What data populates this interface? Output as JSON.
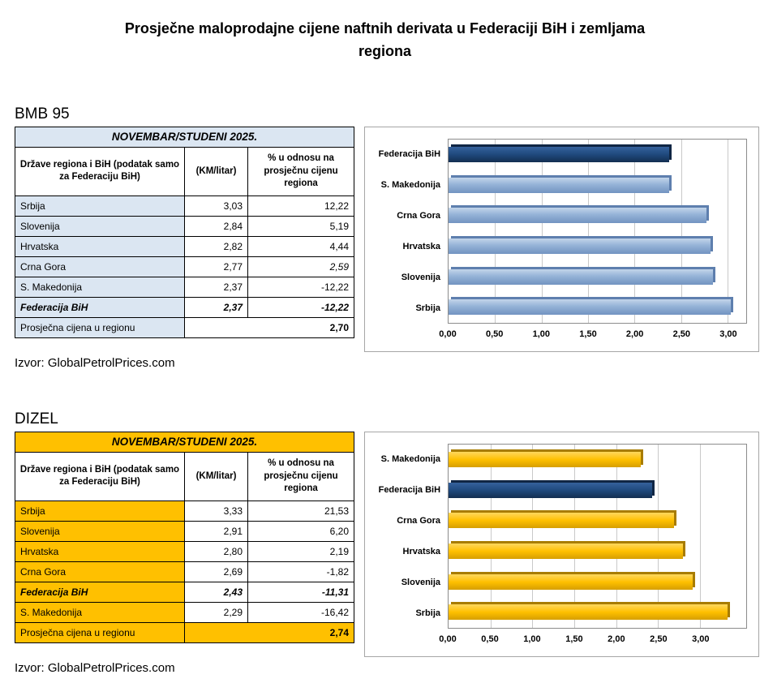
{
  "title": "Prosječne maloprodajne cijene naftnih derivata u Federaciji BiH i zemljama regiona",
  "source": "Izvor: GlobalPetrolPrices.com",
  "sections": [
    {
      "heading": "BMB 95",
      "table": {
        "period": "NOVEMBAR/STUDENI 2025.",
        "columns": [
          "Države regiona i BiH (podatak samo za Federaciju BiH)",
          "(KM/litar)",
          "% u odnosu na prosječnu cijenu regiona"
        ],
        "rows": [
          {
            "name": "Srbija",
            "price": "3,03",
            "pct": "12,22"
          },
          {
            "name": "Slovenija",
            "price": "2,84",
            "pct": "5,19"
          },
          {
            "name": "Hrvatska",
            "price": "2,82",
            "pct": "4,44"
          },
          {
            "name": "Crna Gora",
            "price": "2,77",
            "pct": "2,59"
          },
          {
            "name": "S. Makedonija",
            "price": "2,37",
            "pct": "-12,22"
          },
          {
            "name": "Federacija BiH",
            "price": "2,37",
            "pct": "-12,22"
          }
        ],
        "footer_label": "Prosječna cijena u regionu",
        "footer_value": "2,70"
      }
    },
    {
      "heading": "DIZEL",
      "table": {
        "period": "NOVEMBAR/STUDENI 2025.",
        "columns": [
          "Države regiona i BiH (podatak samo za Federaciju BiH)",
          "(KM/litar)",
          "% u odnosu na prosječnu cijenu regiona"
        ],
        "rows": [
          {
            "name": "Srbija",
            "price": "3,33",
            "pct": "21,53"
          },
          {
            "name": "Slovenija",
            "price": "2,91",
            "pct": "6,20"
          },
          {
            "name": "Hrvatska",
            "price": "2,80",
            "pct": "2,19"
          },
          {
            "name": "Crna Gora",
            "price": "2,69",
            "pct": "-1,82"
          },
          {
            "name": "Federacija BiH",
            "price": "2,43",
            "pct": "-11,31"
          },
          {
            "name": "S. Makedonija",
            "price": "2,29",
            "pct": "-16,42"
          }
        ],
        "footer_label": "Prosječna cijena u regionu",
        "footer_value": "2,74"
      }
    }
  ],
  "chart_data": [
    {
      "type": "bar",
      "orientation": "horizontal",
      "title": "BMB 95 (KM/litar)",
      "categories": [
        "Federacija BiH",
        "S. Makedonija",
        "Crna Gora",
        "Hrvatska",
        "Slovenija",
        "Srbija"
      ],
      "values": [
        2.37,
        2.37,
        2.77,
        2.82,
        2.84,
        3.03
      ],
      "xlim": [
        0,
        3.2
      ],
      "xticks": [
        0,
        0.5,
        1.0,
        1.5,
        2.0,
        2.5,
        3.0
      ],
      "xtick_labels": [
        "0,00",
        "0,50",
        "1,00",
        "1,50",
        "2,00",
        "2,50",
        "3,00"
      ],
      "grid": true,
      "legend": false,
      "colors": [
        "#1f497d",
        "#95b3d7",
        "#95b3d7",
        "#95b3d7",
        "#95b3d7",
        "#95b3d7"
      ],
      "highlight": {
        "category": "Federacija BiH",
        "color": "#1f497d"
      }
    },
    {
      "type": "bar",
      "orientation": "horizontal",
      "title": "DIZEL (KM/litar)",
      "categories": [
        "S. Makedonija",
        "Federacija BiH",
        "Crna Gora",
        "Hrvatska",
        "Slovenija",
        "Srbija"
      ],
      "values": [
        2.29,
        2.43,
        2.69,
        2.8,
        2.91,
        3.33
      ],
      "xlim": [
        0,
        3.55
      ],
      "xticks": [
        0,
        0.5,
        1.0,
        1.5,
        2.0,
        2.5,
        3.0
      ],
      "xtick_labels": [
        "0,00",
        "0,50",
        "1,00",
        "1,50",
        "2,00",
        "2,50",
        "3,00"
      ],
      "grid": true,
      "legend": false,
      "colors": [
        "#ffc000",
        "#1f497d",
        "#ffc000",
        "#ffc000",
        "#ffc000",
        "#ffc000"
      ],
      "highlight": {
        "category": "Federacija BiH",
        "color": "#1f497d"
      }
    }
  ]
}
